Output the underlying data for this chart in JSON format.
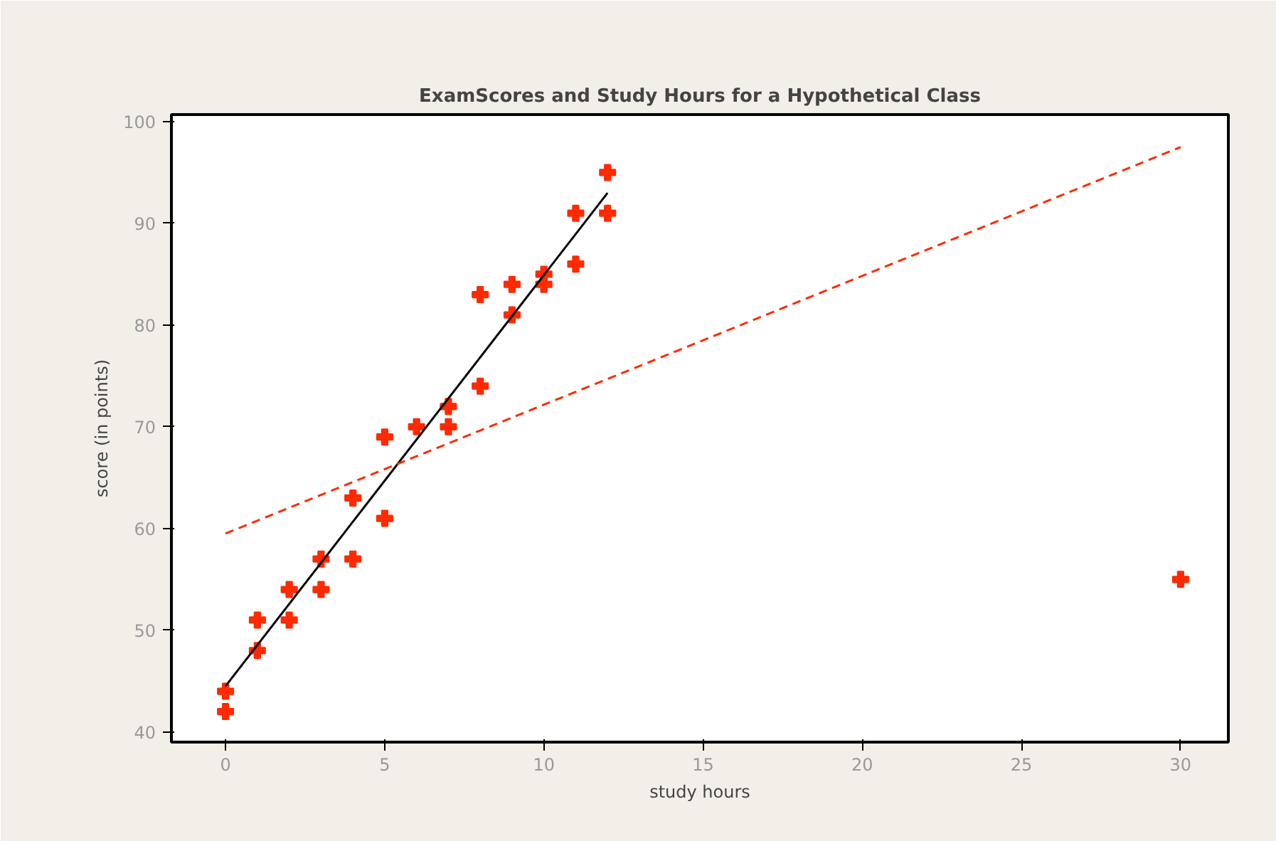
{
  "chart_data": {
    "type": "scatter",
    "title": "ExamScores and Study Hours for a Hypothetical Class",
    "xlabel": "study hours",
    "ylabel": "score (in points)",
    "xlim": [
      -1.7,
      31.5
    ],
    "ylim": [
      39,
      100.7
    ],
    "xticks": [
      0,
      5,
      10,
      15,
      20,
      25,
      30
    ],
    "yticks": [
      40,
      50,
      60,
      70,
      80,
      90,
      100
    ],
    "grid": false,
    "marker": "cross",
    "series": [
      {
        "color": "#ff2a00",
        "x": [
          0,
          0,
          1,
          1,
          2,
          2,
          3,
          3,
          4,
          4,
          5,
          5,
          6,
          7,
          7,
          8,
          8,
          9,
          9,
          10,
          10,
          11,
          11,
          12,
          12,
          30
        ],
        "values": [
          44,
          42,
          51,
          48,
          54,
          51,
          57,
          54,
          63,
          57,
          69,
          61,
          70,
          72,
          70,
          83,
          74,
          84,
          81,
          85,
          84,
          91,
          86,
          95,
          91,
          55
        ]
      },
      {
        "type": "line",
        "color": "#000000",
        "line_style": "solid",
        "marker": "none",
        "x": [
          0,
          12
        ],
        "values": [
          44.5,
          93
        ]
      },
      {
        "type": "line",
        "color": "#ff2a00",
        "line_style": "dashed",
        "marker": "none",
        "x": [
          0,
          30
        ],
        "values": [
          59.5,
          97.5
        ]
      }
    ]
  }
}
